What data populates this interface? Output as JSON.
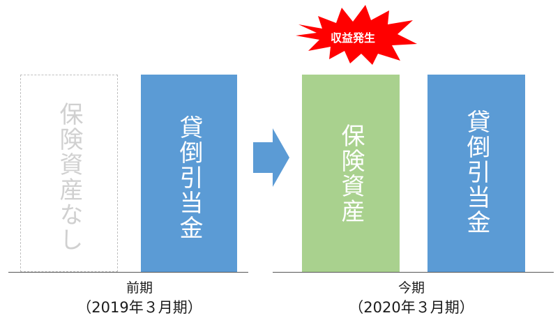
{
  "previous_period": {
    "insurance_box_text": "保険資産なし",
    "allowance_box_text": "貸倒引当金",
    "title": "前期",
    "date": "（2019年３月期）"
  },
  "current_period": {
    "insurance_box_text": "保険資産",
    "allowance_box_text": "貸倒引当金",
    "title": "今期",
    "date": "（2020年３月期）"
  },
  "burst": {
    "label": "収益発生",
    "color": "#ff0000"
  },
  "colors": {
    "allowance_blue": "#5b9bd5",
    "insurance_green": "#a9d18e",
    "arrow_blue": "#5b9bd5",
    "missing_border": "#bfbfbf"
  }
}
